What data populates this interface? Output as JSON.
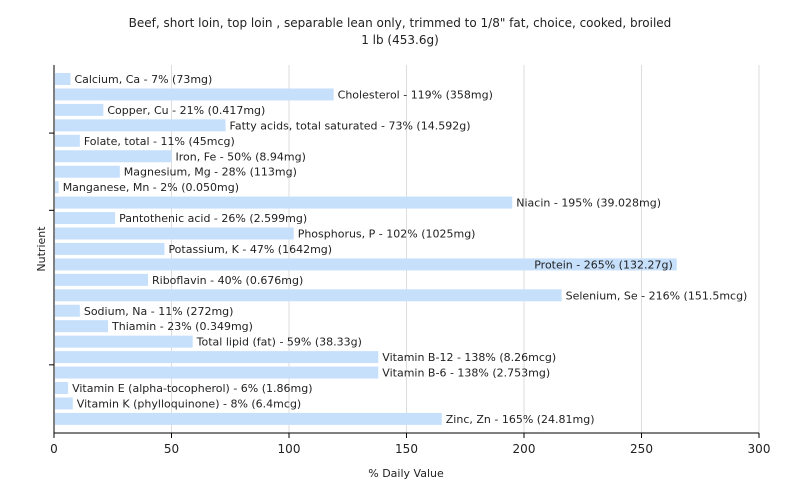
{
  "chart_data": {
    "type": "bar",
    "orientation": "horizontal",
    "title": "Beef, short loin, top loin , separable lean only, trimmed to 1/8\" fat, choice, cooked, broiled",
    "subtitle": "1 lb (453.6g)",
    "xlabel": "% Daily Value",
    "ylabel": "Nutrient",
    "xlim": [
      0,
      300
    ],
    "xticks": [
      0,
      50,
      100,
      150,
      200,
      250,
      300
    ],
    "grid": true,
    "legend": "none",
    "bar_color": "#c6e0fc",
    "categories": [
      "Calcium, Ca",
      "Cholesterol",
      "Copper, Cu",
      "Fatty acids, total saturated",
      "Folate, total",
      "Iron, Fe",
      "Magnesium, Mg",
      "Manganese, Mn",
      "Niacin",
      "Pantothenic acid",
      "Phosphorus, P",
      "Potassium, K",
      "Protein",
      "Riboflavin",
      "Selenium, Se",
      "Sodium, Na",
      "Thiamin",
      "Total lipid (fat)",
      "Vitamin B-12",
      "Vitamin B-6",
      "Vitamin E (alpha-tocopherol)",
      "Vitamin K (phylloquinone)",
      "Zinc, Zn"
    ],
    "values": [
      7,
      119,
      21,
      73,
      11,
      50,
      28,
      2,
      195,
      26,
      102,
      47,
      265,
      40,
      216,
      11,
      23,
      59,
      138,
      138,
      6,
      8,
      165
    ],
    "labels": [
      "Calcium, Ca - 7% (73mg)",
      "Cholesterol - 119% (358mg)",
      "Copper, Cu - 21% (0.417mg)",
      "Fatty acids, total saturated - 73% (14.592g)",
      "Folate, total - 11% (45mcg)",
      "Iron, Fe - 50% (8.94mg)",
      "Magnesium, Mg - 28% (113mg)",
      "Manganese, Mn - 2% (0.050mg)",
      "Niacin - 195% (39.028mg)",
      "Pantothenic acid - 26% (2.599mg)",
      "Phosphorus, P - 102% (1025mg)",
      "Potassium, K - 47% (1642mg)",
      "Protein - 265% (132.27g)",
      "Riboflavin - 40% (0.676mg)",
      "Selenium, Se - 216% (151.5mcg)",
      "Sodium, Na - 11% (272mg)",
      "Thiamin - 23% (0.349mg)",
      "Total lipid (fat) - 59% (38.33g)",
      "Vitamin B-12 - 138% (8.26mcg)",
      "Vitamin B-6 - 138% (2.753mg)",
      "Vitamin E (alpha-tocopherol) - 6% (1.86mg)",
      "Vitamin K (phylloquinone) - 8% (6.4mcg)",
      "Zinc, Zn - 165% (24.81mg)"
    ]
  }
}
